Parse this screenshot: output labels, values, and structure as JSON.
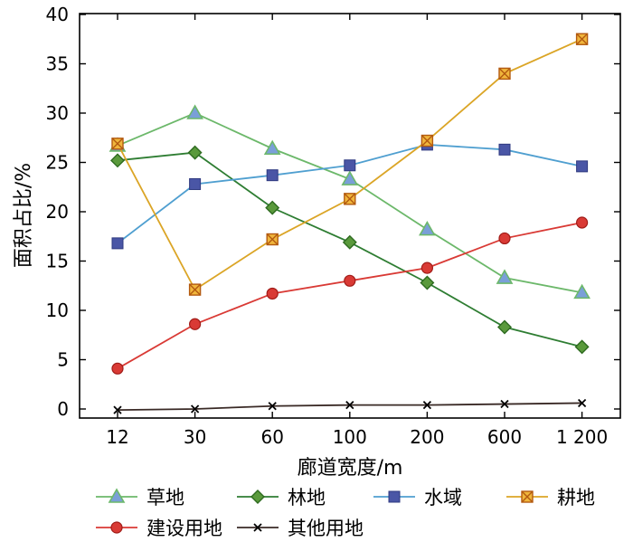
{
  "chart_data": {
    "type": "line",
    "categories": [
      "12",
      "30",
      "60",
      "100",
      "200",
      "600",
      "1 200"
    ],
    "xlabel": "廊道宽度/m",
    "ylabel": "面积占比/%",
    "ylim": [
      0,
      40
    ],
    "yticks": [
      "0",
      "5",
      "10",
      "15",
      "20",
      "25",
      "30",
      "35",
      "40"
    ],
    "grid": false,
    "legend_position": "bottom",
    "series": [
      {
        "name": "草地",
        "color": "#6cb86a",
        "marker": "triangle",
        "marker_fill": "#7a9fd8",
        "values": [
          26.7,
          30.0,
          26.4,
          23.3,
          18.2,
          13.3,
          11.8
        ]
      },
      {
        "name": "林地",
        "color": "#2e7d32",
        "marker": "diamond",
        "marker_fill": "#5a9a3c",
        "values": [
          25.2,
          26.0,
          20.4,
          16.9,
          12.8,
          8.3,
          6.3
        ]
      },
      {
        "name": "水域",
        "color": "#4f9fd0",
        "marker": "square",
        "marker_fill": "#4a56a6",
        "values": [
          16.8,
          22.8,
          23.7,
          24.7,
          26.8,
          26.3,
          24.6
        ]
      },
      {
        "name": "耕地",
        "color": "#dba526",
        "marker": "xsquare",
        "marker_fill": "#f0b63c",
        "values": [
          26.9,
          12.1,
          17.2,
          21.3,
          27.2,
          34.0,
          37.5
        ]
      },
      {
        "name": "建设用地",
        "color": "#d93a35",
        "marker": "circle",
        "marker_fill": "#d93a35",
        "values": [
          4.1,
          8.6,
          11.7,
          13.0,
          14.3,
          17.3,
          18.9
        ]
      },
      {
        "name": "其他用地",
        "color": "#3a2a26",
        "marker": "x",
        "marker_fill": "#000000",
        "values": [
          -0.1,
          0.0,
          0.3,
          0.4,
          0.4,
          0.5,
          0.6
        ]
      }
    ]
  }
}
